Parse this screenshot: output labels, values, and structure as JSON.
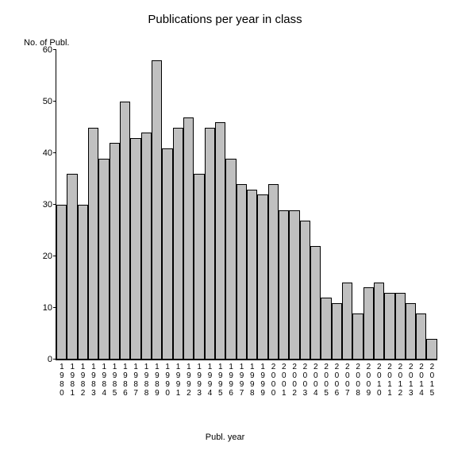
{
  "chart": {
    "type": "bar",
    "title": "Publications per year in class",
    "y_axis_label": "No. of Publ.",
    "x_axis_label": "Publ. year",
    "title_fontsize": 15,
    "label_fontsize": 11,
    "tick_fontsize": 11,
    "background_color": "#ffffff",
    "bar_fill_color": "#c0c0c0",
    "bar_border_color": "#000000",
    "axis_color": "#000000",
    "text_color": "#000000",
    "ylim": [
      0,
      60
    ],
    "ytick_step": 10,
    "yticks": [
      0,
      10,
      20,
      30,
      40,
      50,
      60
    ],
    "categories": [
      "1980",
      "1981",
      "1982",
      "1983",
      "1984",
      "1985",
      "1986",
      "1987",
      "1988",
      "1989",
      "1990",
      "1991",
      "1992",
      "1993",
      "1994",
      "1995",
      "1996",
      "1997",
      "1998",
      "1999",
      "2000",
      "2001",
      "2002",
      "2003",
      "2004",
      "2005",
      "2006",
      "2007",
      "2008",
      "2009",
      "2010",
      "2011",
      "2012",
      "2013",
      "2014",
      "2015"
    ],
    "values": [
      30,
      36,
      30,
      45,
      39,
      42,
      50,
      43,
      44,
      58,
      41,
      45,
      47,
      36,
      45,
      46,
      39,
      34,
      33,
      32,
      34,
      29,
      29,
      27,
      22,
      12,
      11,
      15,
      9,
      14,
      15,
      13,
      13,
      11,
      9,
      4
    ]
  }
}
